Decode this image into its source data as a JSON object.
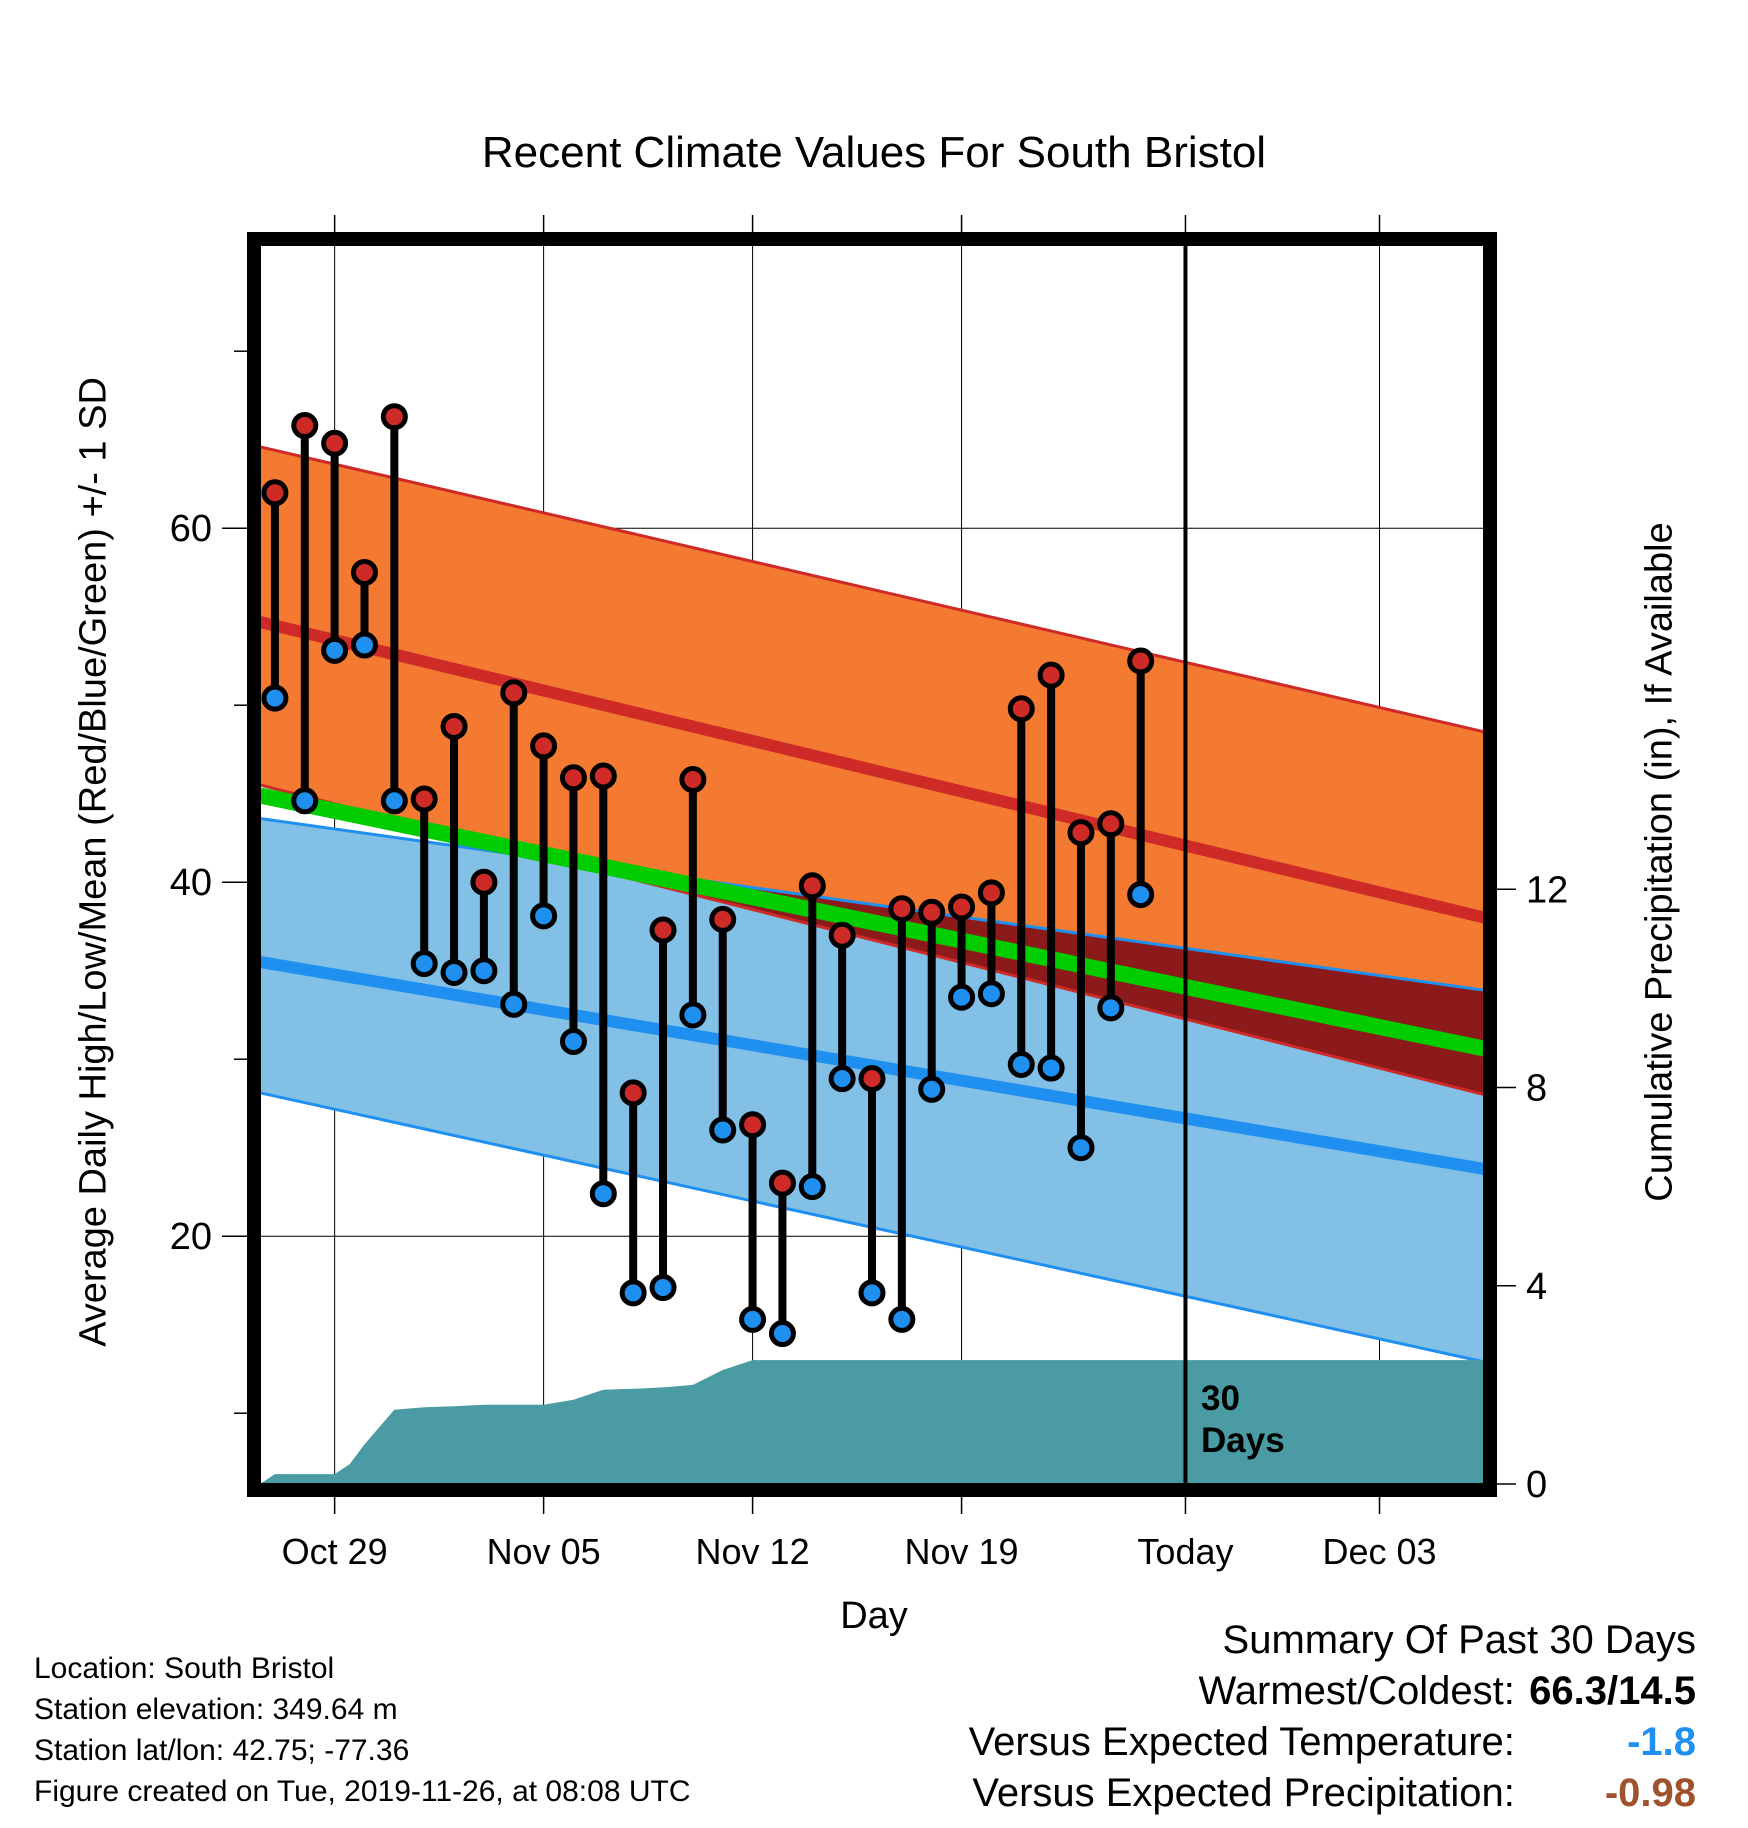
{
  "chart_data": {
    "type": "line",
    "title": "Recent Climate Values For South Bristol",
    "xlabel": "Day",
    "ylabel_left": "Average Daily High/Low/Mean (Red/Blue/Green) +/- 1 SD",
    "ylabel_right": "Cumulative Precipitation (in), If Available",
    "x_tick_labels": [
      "Oct 29",
      "Nov 05",
      "Nov 12",
      "Nov 19",
      "Today",
      "Dec 03"
    ],
    "y_left_ticks": [
      "20",
      "40",
      "60"
    ],
    "y_left_range": [
      6,
      76
    ],
    "y_right_ticks": [
      "0",
      "4",
      "8",
      "12"
    ],
    "y_right_range": [
      0,
      25
    ],
    "days_since_start_range": [
      -0.5,
      40.5
    ],
    "today_day_index": 30.5,
    "today_label": "30\nDays",
    "observed_days": [
      0,
      1,
      2,
      3,
      4,
      5,
      6,
      7,
      8,
      9,
      10,
      11,
      12,
      13,
      14,
      15,
      16,
      17,
      18,
      19,
      20,
      21,
      22,
      23,
      24,
      25,
      26,
      27,
      28,
      29
    ],
    "observed_high": [
      62.0,
      65.8,
      64.8,
      57.5,
      66.3,
      44.7,
      48.8,
      40.0,
      50.7,
      47.7,
      45.9,
      46.0,
      28.1,
      37.3,
      45.8,
      37.9,
      26.3,
      23.0,
      39.8,
      37.0,
      28.9,
      38.5,
      38.3,
      38.6,
      39.4,
      49.8,
      51.7,
      42.8,
      43.3,
      52.5
    ],
    "observed_low": [
      50.4,
      44.6,
      53.1,
      53.4,
      44.6,
      35.4,
      34.9,
      35.0,
      33.1,
      38.1,
      31.0,
      22.4,
      16.8,
      17.1,
      32.5,
      26.0,
      15.3,
      14.5,
      22.8,
      28.9,
      16.8,
      15.3,
      28.3,
      33.5,
      33.7,
      29.7,
      29.5,
      25.0,
      32.9,
      39.3
    ],
    "normal_high_mean_plusSD": [
      64.6,
      48.5
    ],
    "normal_high_mean": [
      54.7,
      38.0
    ],
    "normal_high_minusSD": [
      45.5,
      28.0
    ],
    "normal_mean": [
      44.9,
      30.6
    ],
    "normal_low_plusSD": [
      43.6,
      33.9
    ],
    "normal_low_mean": [
      35.5,
      23.8
    ],
    "normal_low_minusSD": [
      28.1,
      12.9
    ],
    "cumulative_precip": {
      "days": [
        -0.5,
        0,
        1,
        2,
        2.5,
        3,
        4,
        5,
        6,
        7,
        8,
        9,
        10,
        11,
        12,
        13,
        14,
        15,
        16,
        17,
        18,
        19,
        20,
        21,
        22,
        23,
        24,
        25,
        26,
        27,
        28,
        29,
        30,
        40.5
      ],
      "values": [
        0.0,
        0.2,
        0.2,
        0.2,
        0.4,
        0.8,
        1.5,
        1.55,
        1.57,
        1.6,
        1.6,
        1.6,
        1.7,
        1.9,
        1.92,
        1.95,
        2.0,
        2.3,
        2.5,
        2.5,
        2.5,
        2.5,
        2.5,
        2.5,
        2.5,
        2.5,
        2.5,
        2.5,
        2.5,
        2.5,
        2.5,
        2.5,
        2.5,
        2.5
      ]
    },
    "colors": {
      "high_band": "#f47a32",
      "high_line": "#cd2a28",
      "mean_line": "#00cc00",
      "low_band": "#82c0e6",
      "low_line": "#1f8ff0",
      "overlap_band": "#8c1a1a",
      "precip_fill": "#4a9ba3",
      "high_marker": "#cd2a28",
      "low_marker": "#1f8ff0"
    }
  },
  "location_info": {
    "location": "Location: South Bristol",
    "elevation": "Station elevation: 349.64 m",
    "latlon": "Station lat/lon: 42.75; -77.36",
    "created": "Figure created on Tue, 2019-11-26, at 08:08 UTC"
  },
  "summary": {
    "heading": "Summary Of Past 30 Days",
    "warm_cold_label": "Warmest/Coldest:",
    "warm_cold_value": "66.3/14.5",
    "temp_label": "Versus Expected Temperature:",
    "temp_value": "-1.8",
    "temp_color": "#1f8ff0",
    "precip_label": "Versus Expected Precipitation:",
    "precip_value": "-0.98",
    "precip_color": "#a0522d"
  }
}
